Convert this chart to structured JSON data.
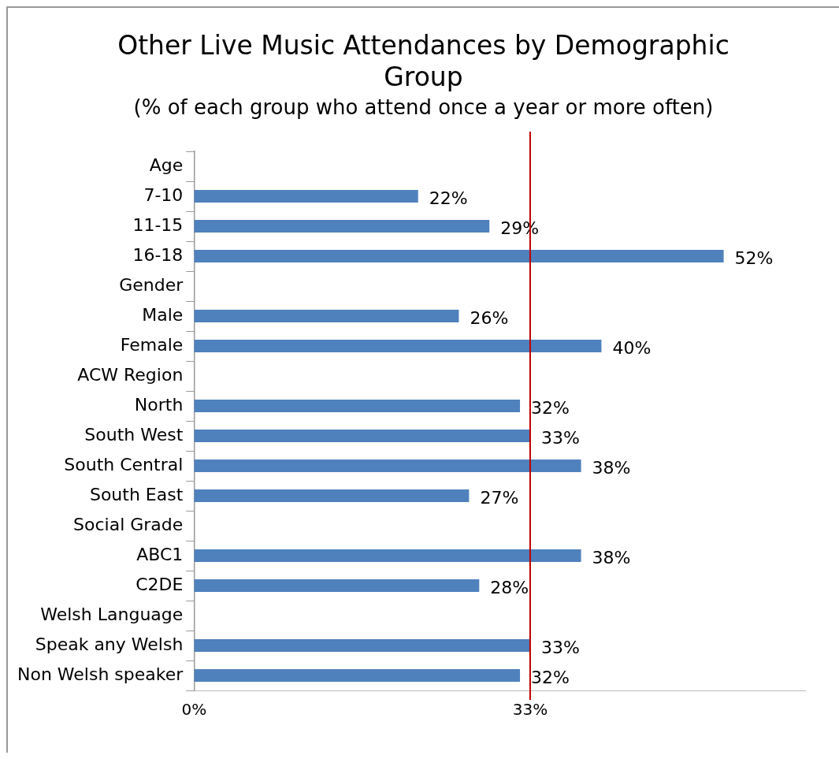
{
  "chart_data": {
    "type": "bar",
    "orientation": "horizontal",
    "title": "Other Live Music Attendances by Demographic Group",
    "subtitle": "(% of each group who attend once a year or more often)",
    "categories": [
      "Age",
      "7-10",
      "11-15",
      "16-18",
      "Gender",
      "Male",
      "Female",
      "ACW Region",
      "North",
      "South West",
      "South Central",
      "South East",
      "Social Grade",
      "ABC1",
      "C2DE",
      "Welsh Language",
      "Speak any Welsh",
      "Non Welsh speaker"
    ],
    "values": [
      null,
      22,
      29,
      52,
      null,
      26,
      40,
      null,
      32,
      33,
      38,
      27,
      null,
      38,
      28,
      null,
      33,
      32
    ],
    "value_labels": [
      null,
      "22%",
      "29%",
      "52%",
      null,
      "26%",
      "40%",
      null,
      "32%",
      "33%",
      "38%",
      "27%",
      null,
      "38%",
      "28%",
      null,
      "33%",
      "32%"
    ],
    "color": "#4f81bd",
    "xlim": [
      0,
      60
    ],
    "xticks": [
      {
        "value": 0,
        "label": "0%"
      },
      {
        "value": 33,
        "label": "33%"
      }
    ],
    "ref_lines": [
      {
        "axis": "x",
        "value": 33,
        "color": "#c00000"
      }
    ],
    "grid": false,
    "legend": false
  }
}
